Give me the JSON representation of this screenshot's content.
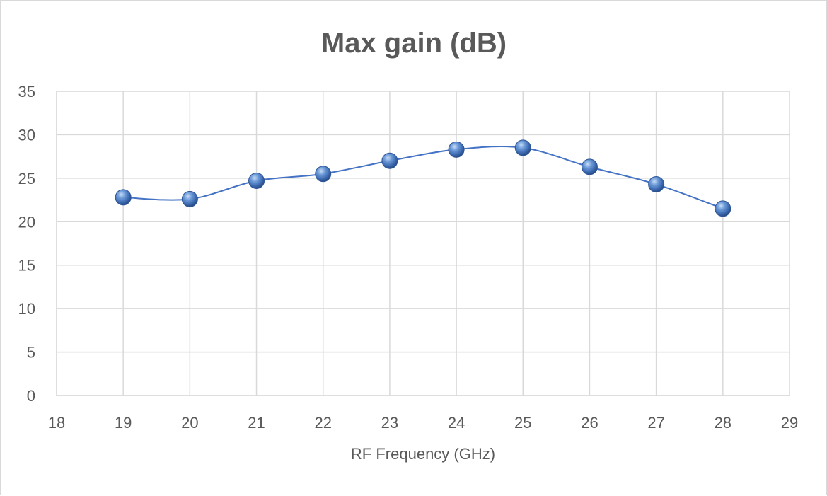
{
  "chart_data": {
    "type": "scatter",
    "title": "Max gain (dB)",
    "xlabel": "RF Frequency (GHz)",
    "ylabel": "",
    "xlim": [
      18,
      29
    ],
    "ylim": [
      0,
      35
    ],
    "x_ticks": [
      18,
      19,
      20,
      21,
      22,
      23,
      24,
      25,
      26,
      27,
      28,
      29
    ],
    "y_ticks": [
      0,
      5,
      10,
      15,
      20,
      25,
      30,
      35
    ],
    "grid": true,
    "smooth_line": true,
    "legend": "none",
    "series": [
      {
        "x": [
          19,
          20,
          21,
          22,
          23,
          24,
          25,
          26,
          27,
          28
        ],
        "y": [
          22.8,
          22.6,
          24.7,
          25.5,
          27.0,
          28.3,
          28.5,
          26.3,
          24.3,
          21.5
        ],
        "color": "#4472c4"
      }
    ]
  }
}
